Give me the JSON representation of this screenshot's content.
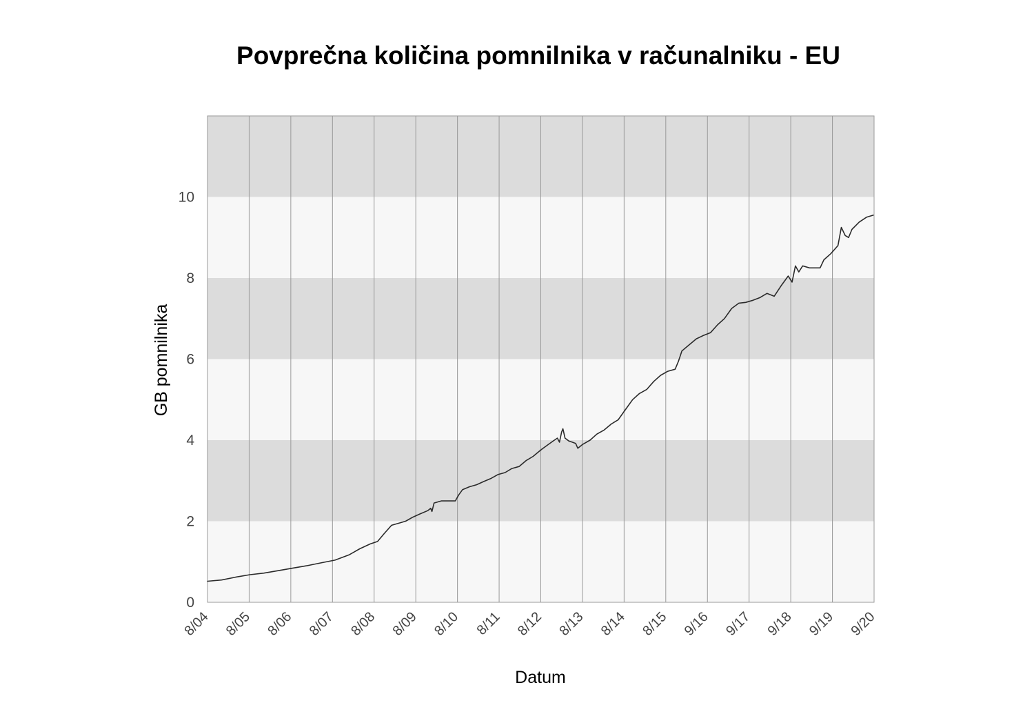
{
  "chart_data": {
    "type": "line",
    "title": "Povprečna količina pomnilnika v računalniku - EU",
    "xlabel": "Datum",
    "ylabel": "GB pomnilnika",
    "ylim": [
      0,
      12
    ],
    "yticks": [
      0,
      2,
      4,
      6,
      8,
      10
    ],
    "x_tick_labels": [
      "8/04",
      "8/05",
      "8/06",
      "8/07",
      "8/08",
      "8/09",
      "8/10",
      "8/11",
      "8/12",
      "8/13",
      "8/14",
      "8/15",
      "9/16",
      "9/17",
      "9/18",
      "9/19",
      "9/20"
    ],
    "grid": "vertical lines at ticks, alternating horizontal bands every 2 GB",
    "colors": {
      "line": "#2a2a2a",
      "band_dark": "#dcdcdc",
      "band_light": "#f7f7f7",
      "grid": "#999999"
    },
    "series": [
      {
        "points": [
          [
            2004.67,
            0.52
          ],
          [
            2005.0,
            0.55
          ],
          [
            2005.33,
            0.62
          ],
          [
            2005.67,
            0.68
          ],
          [
            2006.0,
            0.72
          ],
          [
            2006.33,
            0.78
          ],
          [
            2006.67,
            0.84
          ],
          [
            2007.0,
            0.9
          ],
          [
            2007.33,
            0.97
          ],
          [
            2007.67,
            1.04
          ],
          [
            2008.0,
            1.17
          ],
          [
            2008.25,
            1.32
          ],
          [
            2008.5,
            1.44
          ],
          [
            2008.67,
            1.5
          ],
          [
            2008.83,
            1.7
          ],
          [
            2009.0,
            1.9
          ],
          [
            2009.17,
            1.95
          ],
          [
            2009.33,
            2.0
          ],
          [
            2009.5,
            2.1
          ],
          [
            2009.67,
            2.18
          ],
          [
            2009.85,
            2.26
          ],
          [
            2009.92,
            2.32
          ],
          [
            2009.95,
            2.24
          ],
          [
            2010.0,
            2.45
          ],
          [
            2010.17,
            2.5
          ],
          [
            2010.5,
            2.5
          ],
          [
            2010.58,
            2.65
          ],
          [
            2010.67,
            2.78
          ],
          [
            2010.83,
            2.85
          ],
          [
            2011.0,
            2.9
          ],
          [
            2011.17,
            2.98
          ],
          [
            2011.33,
            3.05
          ],
          [
            2011.5,
            3.15
          ],
          [
            2011.67,
            3.2
          ],
          [
            2011.83,
            3.3
          ],
          [
            2012.0,
            3.35
          ],
          [
            2012.17,
            3.5
          ],
          [
            2012.33,
            3.6
          ],
          [
            2012.5,
            3.75
          ],
          [
            2012.67,
            3.88
          ],
          [
            2012.83,
            4.0
          ],
          [
            2012.9,
            4.05
          ],
          [
            2012.95,
            3.95
          ],
          [
            2013.0,
            4.2
          ],
          [
            2013.03,
            4.28
          ],
          [
            2013.08,
            4.05
          ],
          [
            2013.17,
            3.98
          ],
          [
            2013.25,
            3.95
          ],
          [
            2013.33,
            3.92
          ],
          [
            2013.38,
            3.8
          ],
          [
            2013.5,
            3.9
          ],
          [
            2013.67,
            4.0
          ],
          [
            2013.83,
            4.15
          ],
          [
            2014.0,
            4.25
          ],
          [
            2014.17,
            4.4
          ],
          [
            2014.33,
            4.5
          ],
          [
            2014.5,
            4.75
          ],
          [
            2014.67,
            5.0
          ],
          [
            2014.83,
            5.15
          ],
          [
            2015.0,
            5.25
          ],
          [
            2015.17,
            5.45
          ],
          [
            2015.33,
            5.6
          ],
          [
            2015.5,
            5.7
          ],
          [
            2015.67,
            5.75
          ],
          [
            2015.75,
            5.95
          ],
          [
            2015.83,
            6.2
          ],
          [
            2016.0,
            6.35
          ],
          [
            2016.17,
            6.5
          ],
          [
            2016.33,
            6.58
          ],
          [
            2016.5,
            6.65
          ],
          [
            2016.67,
            6.85
          ],
          [
            2016.83,
            7.0
          ],
          [
            2017.0,
            7.25
          ],
          [
            2017.17,
            7.38
          ],
          [
            2017.33,
            7.4
          ],
          [
            2017.5,
            7.45
          ],
          [
            2017.67,
            7.52
          ],
          [
            2017.83,
            7.62
          ],
          [
            2018.0,
            7.55
          ],
          [
            2018.17,
            7.82
          ],
          [
            2018.33,
            8.05
          ],
          [
            2018.42,
            7.9
          ],
          [
            2018.5,
            8.3
          ],
          [
            2018.58,
            8.15
          ],
          [
            2018.67,
            8.3
          ],
          [
            2018.83,
            8.25
          ],
          [
            2019.0,
            8.25
          ],
          [
            2019.08,
            8.25
          ],
          [
            2019.17,
            8.45
          ],
          [
            2019.33,
            8.6
          ],
          [
            2019.5,
            8.8
          ],
          [
            2019.58,
            9.25
          ],
          [
            2019.67,
            9.05
          ],
          [
            2019.75,
            9.0
          ],
          [
            2019.83,
            9.2
          ],
          [
            2020.0,
            9.38
          ],
          [
            2020.17,
            9.5
          ],
          [
            2020.33,
            9.55
          ]
        ]
      }
    ]
  }
}
